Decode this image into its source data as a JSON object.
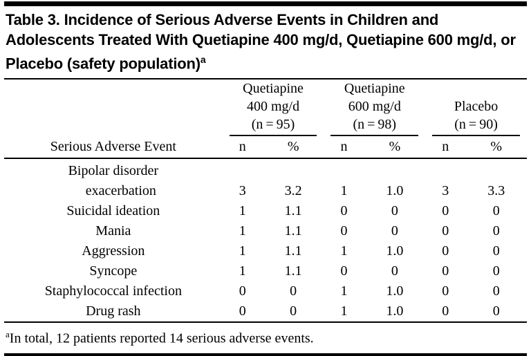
{
  "table": {
    "title": "Table 3. Incidence of Serious Adverse Events in Children and Adolescents Treated With Quetiapine 400 mg/d, Quetiapine 600 mg/d, or Placebo (safety population)",
    "title_sup": "a",
    "groups": [
      {
        "name": "quetiapine-400",
        "lines": [
          "Quetiapine",
          "400 mg/d",
          "(n = 95)"
        ]
      },
      {
        "name": "quetiapine-600",
        "lines": [
          "Quetiapine",
          "600 mg/d",
          "(n = 98)"
        ]
      },
      {
        "name": "placebo",
        "lines": [
          "Placebo",
          "(n = 90)"
        ]
      }
    ],
    "row_header": "Serious Adverse Event",
    "col_n": "n",
    "col_pct": "%",
    "rows": [
      {
        "label": "Bipolar disorder",
        "label2": "exacerbation",
        "q400_n": "3",
        "q400_pct": "3.2",
        "q600_n": "1",
        "q600_pct": "1.0",
        "pbo_n": "3",
        "pbo_pct": "3.3"
      },
      {
        "label": "Suicidal ideation",
        "q400_n": "1",
        "q400_pct": "1.1",
        "q600_n": "0",
        "q600_pct": "0",
        "pbo_n": "0",
        "pbo_pct": "0"
      },
      {
        "label": "Mania",
        "q400_n": "1",
        "q400_pct": "1.1",
        "q600_n": "0",
        "q600_pct": "0",
        "pbo_n": "0",
        "pbo_pct": "0"
      },
      {
        "label": "Aggression",
        "q400_n": "1",
        "q400_pct": "1.1",
        "q600_n": "1",
        "q600_pct": "1.0",
        "pbo_n": "0",
        "pbo_pct": "0"
      },
      {
        "label": "Syncope",
        "q400_n": "1",
        "q400_pct": "1.1",
        "q600_n": "0",
        "q600_pct": "0",
        "pbo_n": "0",
        "pbo_pct": "0"
      },
      {
        "label": "Staphylococcal infection",
        "q400_n": "0",
        "q400_pct": "0",
        "q600_n": "1",
        "q600_pct": "1.0",
        "pbo_n": "0",
        "pbo_pct": "0"
      },
      {
        "label": "Drug rash",
        "q400_n": "0",
        "q400_pct": "0",
        "q600_n": "1",
        "q600_pct": "1.0",
        "pbo_n": "0",
        "pbo_pct": "0"
      }
    ],
    "footnote_sup": "a",
    "footnote": "In total, 12 patients reported 14 serious adverse events."
  }
}
